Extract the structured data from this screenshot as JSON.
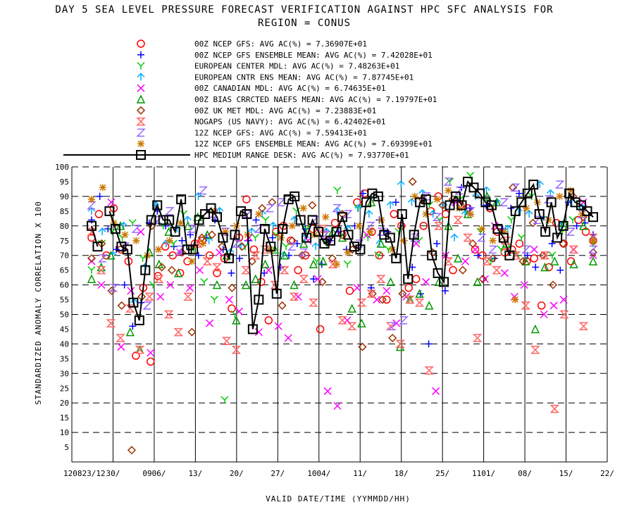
{
  "chart_data": {
    "type": "scatter",
    "title_line1": "DAY 5 SEA LEVEL PRESSURE FORECAST VERIFICATION AGAINST HPC SFC ANALYSIS FOR",
    "title_line2": "REGION = CONUS",
    "ylabel": "STANDARDIZED ANOMALY CORRELATION X 100",
    "xlabel": "VALID DATE/TIME (YYMMDD/HH)",
    "ylim": [
      0,
      100
    ],
    "yticks": [
      5,
      10,
      15,
      20,
      25,
      30,
      35,
      40,
      45,
      50,
      55,
      60,
      65,
      70,
      75,
      80,
      85,
      90,
      95,
      100
    ],
    "x_ticks": [
      "120823/12",
      "30/",
      "0906/",
      "13/",
      "20/",
      "27/",
      "1004/",
      "11/",
      "18/",
      "25/",
      "1101/",
      "08/",
      "15/",
      "22/"
    ],
    "grid": true,
    "legend_position": "top",
    "series": [
      {
        "name": "00Z NCEP GFS",
        "legend": "00Z NCEP GFS: AVG AC(%) =  7.36907E+01",
        "color": "#ff0000",
        "marker": "circle",
        "values": [
          76,
          84,
          70,
          86,
          72,
          68,
          36,
          59,
          34,
          63,
          73,
          70,
          64,
          68,
          74,
          75,
          70,
          64,
          69,
          52,
          76,
          89,
          72,
          61,
          48,
          78,
          80,
          75,
          65,
          70,
          79,
          45,
          75,
          81,
          77,
          58,
          88,
          91,
          78,
          70,
          55,
          84,
          80,
          59,
          62,
          80,
          85,
          90,
          84,
          65,
          87,
          86,
          72,
          70,
          86,
          78,
          71,
          72,
          74,
          68,
          69,
          53,
          66,
          81,
          74,
          68,
          82,
          78,
          75
        ]
      },
      {
        "name": "00Z NCEP GFS ENSEMBLE MEAN",
        "legend": "00Z NCEP GFS ENSEMBLE MEAN: AVG AC(%) =  7.42028E+01",
        "color": "#0000ff",
        "marker": "plus",
        "values": [
          82,
          90,
          79,
          72,
          60,
          46,
          54,
          81,
          85,
          80,
          73,
          75,
          77,
          70,
          76,
          82,
          72,
          64,
          69,
          75,
          82,
          64,
          76,
          66,
          70,
          74,
          79,
          62,
          67,
          75,
          78,
          72,
          80,
          91,
          59,
          82,
          78,
          88,
          75,
          66,
          57,
          40,
          74,
          58,
          88,
          93,
          86,
          70,
          87,
          69,
          79,
          86,
          91,
          70,
          66,
          83,
          74,
          65,
          88,
          80,
          81,
          77
        ]
      },
      {
        "name": "EUROPEAN CENTER MDL",
        "legend": "EUROPEAN CENTER MDL: AVG AC(%) =  7.48263E+01",
        "color": "#00cc00",
        "marker": "Y",
        "values": [
          65,
          74,
          78,
          76,
          81,
          69,
          60,
          80,
          74,
          84,
          72,
          61,
          55,
          21,
          50,
          73,
          76,
          82,
          77,
          73,
          85,
          79,
          68,
          74,
          92,
          67,
          86,
          76,
          70,
          72,
          78,
          55,
          75,
          87,
          82,
          95,
          89,
          97,
          78,
          68,
          72,
          82,
          76,
          90,
          82,
          70,
          78,
          82,
          85,
          74
        ]
      },
      {
        "name": "EUROPEAN CNTR ENS MEAN",
        "legend": "EUROPEAN CNTR ENS MEAN: AVG AC(%) =  7.87745E+01",
        "color": "#00aaff",
        "marker": "arrow",
        "values": [
          85,
          78,
          70,
          80,
          54,
          66,
          87,
          74,
          79,
          82,
          90,
          75,
          85,
          71,
          73,
          78,
          84,
          80,
          70,
          82,
          76,
          73,
          78,
          85,
          79,
          86,
          84,
          74,
          87,
          94,
          88,
          91,
          84,
          87,
          76,
          84,
          90,
          92,
          88,
          79,
          85,
          84,
          94,
          91,
          80,
          88,
          86,
          75
        ]
      },
      {
        "name": "00Z CANADIAN MDL",
        "legend": "00Z CANADIAN MDL: AVG AC(%) =  6.74635E+01",
        "color": "#ff00ff",
        "marker": "x",
        "values": [
          68,
          60,
          88,
          39,
          58,
          78,
          37,
          56,
          60,
          71,
          59,
          65,
          47,
          71,
          55,
          51,
          76,
          44,
          65,
          46,
          42,
          56,
          75,
          62,
          24,
          19,
          48,
          59,
          77,
          55,
          58,
          47,
          56,
          74,
          61,
          24,
          70,
          88,
          68,
          72,
          62,
          80,
          64,
          56,
          60,
          72,
          50,
          53,
          55,
          72,
          88,
          70
        ]
      },
      {
        "name": "00Z BIAS CRRCTED NAEFS MEAN",
        "legend": "00Z BIAS CRRCTED NAEFS MEAN: AVG AC(%) =  7.19797E+01",
        "color": "#009900",
        "marker": "triangle",
        "values": [
          62,
          66,
          70,
          80,
          44,
          38,
          71,
          67,
          78,
          64,
          80,
          83,
          77,
          60,
          70,
          48,
          60,
          62,
          67,
          72,
          70,
          60,
          74,
          67,
          68,
          78,
          76,
          52,
          47,
          88,
          74,
          61,
          39,
          55,
          57,
          53,
          61,
          80,
          69,
          84,
          61,
          90,
          88,
          74,
          70,
          68,
          45,
          66,
          68,
          81,
          67,
          80,
          68
        ]
      },
      {
        "name": "00Z UK MET MDL",
        "legend": "00Z UK MET MDL: AVG AC(%) =  7.23883E+01",
        "color": "#993300",
        "marker": "diamond",
        "values": [
          69,
          74,
          58,
          53,
          4,
          56,
          80,
          66,
          65,
          71,
          44,
          76,
          77,
          73,
          59,
          73,
          68,
          86,
          88,
          53,
          75,
          70,
          87,
          61,
          69,
          84,
          72,
          39,
          57,
          55,
          42,
          57,
          95,
          89,
          71,
          87,
          89,
          65,
          74,
          62,
          69,
          75,
          93,
          68,
          81,
          70,
          60,
          74,
          90,
          83,
          71
        ]
      },
      {
        "name": "NOGAPS (US NAVY)",
        "legend": "NOGAPS (US NAVY): AVG AC(%) =  6.42402E+01",
        "color": "#ff6666",
        "marker": "hourglass",
        "values": [
          78,
          65,
          47,
          42,
          52,
          38,
          56,
          62,
          50,
          44,
          56,
          74,
          68,
          66,
          41,
          38,
          65,
          70,
          72,
          60,
          65,
          56,
          62,
          54,
          79,
          67,
          48,
          46,
          54,
          57,
          62,
          46,
          40,
          55,
          54,
          31,
          80,
          68,
          82,
          76,
          42,
          68,
          65,
          75,
          70,
          53,
          38,
          70,
          18,
          50,
          72,
          46,
          76
        ]
      },
      {
        "name": "12Z NCEP GFS",
        "legend": "12Z NCEP GFS: AVG AC(%) =  7.59413E+01",
        "color": "#9966ff",
        "marker": "Z",
        "values": [
          87,
          69,
          59,
          73,
          79,
          53,
          82,
          85,
          72,
          79,
          92,
          84,
          78,
          74,
          84,
          79,
          86,
          88,
          73,
          71,
          82,
          77,
          86,
          84,
          74,
          80,
          78,
          46,
          48,
          76,
          90,
          83,
          95,
          92,
          85,
          76,
          72,
          88,
          93,
          72,
          82,
          89,
          94,
          78,
          84,
          72
        ]
      },
      {
        "name": "12Z NCEP GFS ENSEMBLE MEAN",
        "legend": "12Z NCEP GFS ENSEMBLE MEAN: AVG AC(%) =  7.69399E+01",
        "color": "#cc7700",
        "marker": "asterisk",
        "values": [
          89,
          93,
          81,
          77,
          75,
          70,
          72,
          75,
          81,
          68,
          74,
          85,
          78,
          80,
          77,
          84,
          72,
          76,
          80,
          86,
          77,
          83,
          67,
          71,
          80,
          78,
          82,
          72,
          75,
          90,
          84,
          89,
          92,
          86,
          84,
          79,
          75,
          78,
          55,
          86,
          88,
          82,
          90,
          92,
          84,
          75
        ]
      },
      {
        "name": "HPC MEDIUM RANGE DESK",
        "legend": "HPC MEDIUM RANGE DESK: AVG AC(%) =  7.93770E+01",
        "color": "#000000",
        "marker": "square",
        "line": true,
        "values": [
          80,
          73,
          null,
          85,
          79,
          73,
          72,
          54,
          48,
          65,
          82,
          87,
          82,
          82,
          78,
          89,
          72,
          72,
          82,
          84,
          86,
          83,
          76,
          69,
          77,
          85,
          84,
          45,
          55,
          79,
          73,
          57,
          79,
          89,
          90,
          82,
          76,
          82,
          78,
          74,
          75,
          78,
          83,
          77,
          73,
          72,
          88,
          91,
          90,
          77,
          76,
          69,
          84,
          62,
          77,
          88,
          89,
          70,
          64,
          61,
          87,
          90,
          87,
          95,
          93,
          91,
          88,
          87,
          79,
          76,
          70,
          85,
          88,
          91,
          94,
          84,
          78,
          88,
          76,
          80,
          91,
          88,
          87,
          85,
          83
        ]
      }
    ]
  }
}
